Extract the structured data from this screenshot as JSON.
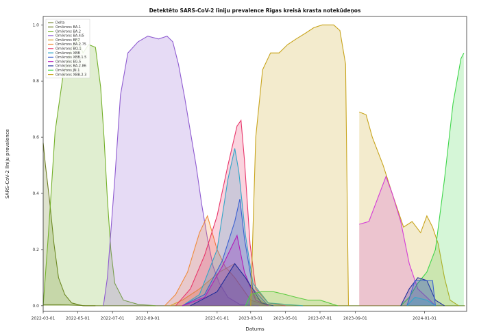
{
  "chart_data": {
    "type": "area",
    "title": "Detektēto SARS-CoV-2 līniju prevalence Rīgas kreisā krasta notekūdeņos",
    "xlabel": "Datums",
    "ylabel": "SARS-CoV-2 līniju prevalence",
    "xlim": [
      "2022-03-01",
      "2024-03-15"
    ],
    "ylim": [
      -0.02,
      1.03
    ],
    "y_ticks": [
      0.0,
      0.2,
      0.4,
      0.6,
      0.8,
      1.0
    ],
    "y_tick_labels": [
      "0.0",
      "0.2",
      "0.4",
      "0.6",
      "0.8",
      "1.0"
    ],
    "x_ticks": [
      "2022-03-01",
      "2022-05-01",
      "2022-07-01",
      "2022-09-01",
      "2023-01-01",
      "2023-03-01",
      "2023-05-01",
      "2023-07-01",
      "2023-09-01",
      "2024-01-01"
    ],
    "x_tick_labels": [
      "2022-03-01",
      "2022-05-01",
      "2022-07-01",
      "2022-09-01",
      "2023-01-01",
      "2023-03-01",
      "2023-05-01",
      "2023-07-01",
      "2023-09-01",
      "2024-01-01"
    ],
    "grid": false,
    "legend_position": "top-left",
    "series": [
      {
        "name": "Delta",
        "color": "#7a8a3a",
        "points": [
          [
            "2022-03-01",
            0.005
          ],
          [
            "2022-04-01",
            0.005
          ],
          [
            "2022-05-15",
            0.0
          ],
          [
            "2024-03-12",
            0.0
          ]
        ]
      },
      {
        "name": "Omikrons BA.1",
        "color": "#6b7d1f",
        "points": [
          [
            "2022-03-01",
            0.58
          ],
          [
            "2022-03-05",
            0.5
          ],
          [
            "2022-03-12",
            0.38
          ],
          [
            "2022-03-20",
            0.22
          ],
          [
            "2022-03-28",
            0.1
          ],
          [
            "2022-04-08",
            0.04
          ],
          [
            "2022-04-20",
            0.01
          ],
          [
            "2022-05-10",
            0.0
          ],
          [
            "2022-06-01",
            0.0
          ]
        ]
      },
      {
        "name": "Omikrons BA.2",
        "color": "#74b02a",
        "points": [
          [
            "2022-03-01",
            0.0
          ],
          [
            "2022-03-10",
            0.25
          ],
          [
            "2022-03-22",
            0.62
          ],
          [
            "2022-04-05",
            0.82
          ],
          [
            "2022-04-20",
            0.92
          ],
          [
            "2022-05-01",
            0.95
          ],
          [
            "2022-05-10",
            0.9
          ],
          [
            "2022-05-20",
            0.93
          ],
          [
            "2022-06-01",
            0.92
          ],
          [
            "2022-06-10",
            0.78
          ],
          [
            "2022-06-16",
            0.6
          ],
          [
            "2022-06-22",
            0.38
          ],
          [
            "2022-06-28",
            0.2
          ],
          [
            "2022-07-05",
            0.08
          ],
          [
            "2022-07-20",
            0.02
          ],
          [
            "2022-08-15",
            0.005
          ],
          [
            "2022-09-15",
            0.0
          ]
        ]
      },
      {
        "name": "Omikrons BA.4/5",
        "color": "#8e5ad0",
        "points": [
          [
            "2022-06-15",
            0.0
          ],
          [
            "2022-06-22",
            0.1
          ],
          [
            "2022-07-05",
            0.45
          ],
          [
            "2022-07-15",
            0.75
          ],
          [
            "2022-07-28",
            0.9
          ],
          [
            "2022-08-15",
            0.94
          ],
          [
            "2022-09-01",
            0.96
          ],
          [
            "2022-09-20",
            0.95
          ],
          [
            "2022-10-05",
            0.96
          ],
          [
            "2022-10-15",
            0.94
          ],
          [
            "2022-10-25",
            0.86
          ],
          [
            "2022-11-05",
            0.74
          ],
          [
            "2022-11-15",
            0.62
          ],
          [
            "2022-11-25",
            0.5
          ],
          [
            "2022-12-05",
            0.36
          ],
          [
            "2022-12-15",
            0.24
          ],
          [
            "2022-12-25",
            0.14
          ],
          [
            "2023-01-05",
            0.08
          ],
          [
            "2023-01-20",
            0.03
          ],
          [
            "2023-02-10",
            0.005
          ],
          [
            "2023-03-15",
            0.0
          ]
        ]
      },
      {
        "name": "Omikrons BF.7",
        "color": "#d8a237",
        "points": [
          [
            "2022-10-10",
            0.0
          ],
          [
            "2022-11-01",
            0.02
          ],
          [
            "2022-12-01",
            0.06
          ],
          [
            "2023-01-05",
            0.12
          ],
          [
            "2023-02-01",
            0.15
          ],
          [
            "2023-02-20",
            0.1
          ],
          [
            "2023-03-10",
            0.03
          ],
          [
            "2023-04-01",
            0.0
          ]
        ]
      },
      {
        "name": "Omikrons BA.2.75",
        "color": "#f08a3a",
        "points": [
          [
            "2022-10-01",
            0.0
          ],
          [
            "2022-10-20",
            0.04
          ],
          [
            "2022-11-10",
            0.12
          ],
          [
            "2022-12-01",
            0.26
          ],
          [
            "2022-12-15",
            0.32
          ],
          [
            "2023-01-01",
            0.2
          ],
          [
            "2023-01-15",
            0.14
          ],
          [
            "2023-02-01",
            0.1
          ],
          [
            "2023-03-01",
            0.02
          ],
          [
            "2023-04-01",
            0.0
          ]
        ]
      },
      {
        "name": "Omikrons BQ.1",
        "color": "#e8356a",
        "points": [
          [
            "2022-10-20",
            0.0
          ],
          [
            "2022-11-15",
            0.06
          ],
          [
            "2022-12-10",
            0.18
          ],
          [
            "2023-01-01",
            0.32
          ],
          [
            "2023-01-20",
            0.5
          ],
          [
            "2023-02-05",
            0.64
          ],
          [
            "2023-02-12",
            0.66
          ],
          [
            "2023-02-18",
            0.52
          ],
          [
            "2023-02-28",
            0.22
          ],
          [
            "2023-03-10",
            0.06
          ],
          [
            "2023-04-01",
            0.01
          ],
          [
            "2023-05-01",
            0.0
          ]
        ]
      },
      {
        "name": "Omikrons XBB",
        "color": "#2fa6c8",
        "points": [
          [
            "2022-11-01",
            0.0
          ],
          [
            "2022-12-01",
            0.04
          ],
          [
            "2023-01-01",
            0.2
          ],
          [
            "2023-01-20",
            0.45
          ],
          [
            "2023-02-01",
            0.56
          ],
          [
            "2023-02-08",
            0.48
          ],
          [
            "2023-02-20",
            0.25
          ],
          [
            "2023-03-05",
            0.08
          ],
          [
            "2023-04-01",
            0.01
          ],
          [
            "2023-06-01",
            0.0
          ]
        ]
      },
      {
        "name": "Omikrons XBB.1.5",
        "color": "#3a5fd0",
        "points": [
          [
            "2022-11-01",
            0.0
          ],
          [
            "2022-12-10",
            0.04
          ],
          [
            "2023-01-10",
            0.16
          ],
          [
            "2023-02-01",
            0.3
          ],
          [
            "2023-02-10",
            0.38
          ],
          [
            "2023-02-18",
            0.24
          ],
          [
            "2023-03-05",
            0.06
          ],
          [
            "2023-04-01",
            0.0
          ]
        ]
      },
      {
        "name": "Omikrons EG.5",
        "color": "#b21cb8",
        "points": [
          [
            "2022-11-01",
            0.0
          ],
          [
            "2022-12-10",
            0.03
          ],
          [
            "2023-01-10",
            0.14
          ],
          [
            "2023-02-05",
            0.25
          ],
          [
            "2023-02-18",
            0.12
          ],
          [
            "2023-03-10",
            0.02
          ],
          [
            "2023-04-01",
            0.0
          ]
        ]
      },
      {
        "name": "Omikrons BA.2.86",
        "color": "#1f2d9a",
        "points": [
          [
            "2022-11-15",
            0.0
          ],
          [
            "2023-01-01",
            0.05
          ],
          [
            "2023-02-01",
            0.15
          ],
          [
            "2023-02-20",
            0.1
          ],
          [
            "2023-03-20",
            0.01
          ],
          [
            "2023-04-10",
            0.0
          ]
        ]
      },
      {
        "name": "Omikrons JN.1",
        "color": "#3ed64a",
        "points": [
          [
            "2023-02-20",
            0.0
          ],
          [
            "2023-03-01",
            0.04
          ],
          [
            "2023-03-20",
            0.05
          ],
          [
            "2023-04-10",
            0.05
          ],
          [
            "2023-05-01",
            0.04
          ],
          [
            "2023-05-20",
            0.03
          ],
          [
            "2023-06-10",
            0.02
          ],
          [
            "2023-07-01",
            0.02
          ],
          [
            "2023-08-01",
            0.0
          ]
        ]
      },
      {
        "name": "Omikrons XBB.2.3",
        "color": "#c8a41c",
        "points": [
          [
            "2023-03-01",
            0.0
          ],
          [
            "2023-03-10",
            0.6
          ],
          [
            "2023-03-22",
            0.84
          ],
          [
            "2023-04-05",
            0.9
          ],
          [
            "2023-04-20",
            0.9
          ],
          [
            "2023-05-05",
            0.93
          ],
          [
            "2023-05-20",
            0.95
          ],
          [
            "2023-06-05",
            0.97
          ],
          [
            "2023-06-20",
            0.99
          ],
          [
            "2023-07-05",
            1.0
          ],
          [
            "2023-07-25",
            1.0
          ],
          [
            "2023-08-05",
            0.98
          ],
          [
            "2023-08-15",
            0.86
          ],
          [
            "2023-08-20",
            0.0
          ]
        ]
      }
    ],
    "segment_two": [
      {
        "name": "Omikrons XBB.2.3",
        "color": "#c8a41c",
        "points": [
          [
            "2023-09-08",
            0.69
          ],
          [
            "2023-09-20",
            0.68
          ],
          [
            "2023-10-01",
            0.6
          ],
          [
            "2023-10-20",
            0.5
          ],
          [
            "2023-11-05",
            0.4
          ],
          [
            "2023-11-25",
            0.28
          ],
          [
            "2023-12-10",
            0.3
          ],
          [
            "2023-12-25",
            0.26
          ],
          [
            "2024-01-05",
            0.32
          ],
          [
            "2024-01-15",
            0.28
          ],
          [
            "2024-01-25",
            0.22
          ],
          [
            "2024-02-05",
            0.1
          ],
          [
            "2024-02-15",
            0.02
          ],
          [
            "2024-03-01",
            0.0
          ]
        ]
      },
      {
        "name": "Omikrons EG.5",
        "color": "#d43ad8",
        "points": [
          [
            "2023-09-08",
            0.29
          ],
          [
            "2023-09-25",
            0.3
          ],
          [
            "2023-10-10",
            0.38
          ],
          [
            "2023-10-25",
            0.46
          ],
          [
            "2023-11-05",
            0.4
          ],
          [
            "2023-11-20",
            0.3
          ],
          [
            "2023-12-05",
            0.15
          ],
          [
            "2023-12-20",
            0.06
          ],
          [
            "2024-01-05",
            0.03
          ],
          [
            "2024-01-20",
            0.0
          ]
        ]
      },
      {
        "name": "Omikrons JN.1",
        "color": "#3ed64a",
        "points": [
          [
            "2023-11-20",
            0.0
          ],
          [
            "2023-12-05",
            0.03
          ],
          [
            "2023-12-20",
            0.08
          ],
          [
            "2024-01-05",
            0.12
          ],
          [
            "2024-01-20",
            0.2
          ],
          [
            "2024-02-05",
            0.45
          ],
          [
            "2024-02-20",
            0.72
          ],
          [
            "2024-03-05",
            0.88
          ],
          [
            "2024-03-10",
            0.9
          ]
        ]
      },
      {
        "name": "Omikrons BA.2.86",
        "color": "#1f2d9a",
        "points": [
          [
            "2023-11-20",
            0.0
          ],
          [
            "2023-12-05",
            0.06
          ],
          [
            "2023-12-20",
            0.1
          ],
          [
            "2024-01-05",
            0.09
          ],
          [
            "2024-01-20",
            0.02
          ],
          [
            "2024-02-05",
            0.0
          ]
        ]
      },
      {
        "name": "Omikrons XBB.1.5",
        "color": "#3a5fd0",
        "points": [
          [
            "2023-12-01",
            0.0
          ],
          [
            "2023-12-15",
            0.09
          ],
          [
            "2024-01-01",
            0.09
          ],
          [
            "2024-01-15",
            0.09
          ],
          [
            "2024-01-20",
            0.0
          ]
        ]
      },
      {
        "name": "Omikrons XBB",
        "color": "#2fa6c8",
        "points": [
          [
            "2023-12-01",
            0.0
          ],
          [
            "2023-12-15",
            0.03
          ],
          [
            "2024-01-05",
            0.02
          ],
          [
            "2024-01-20",
            0.0
          ]
        ]
      }
    ]
  }
}
